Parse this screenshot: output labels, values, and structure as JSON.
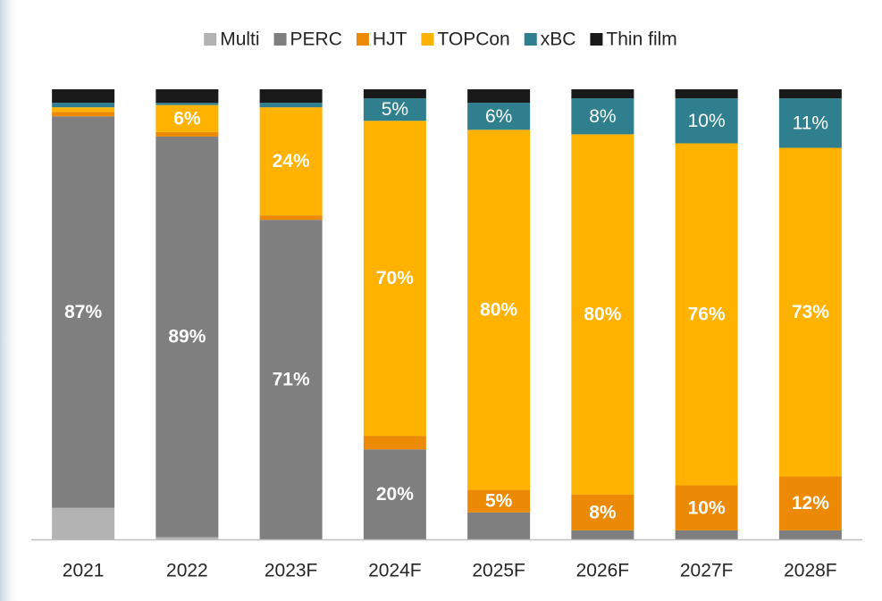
{
  "chart_data": {
    "type": "stacked_bar",
    "categories": [
      "2021",
      "2022",
      "2023F",
      "2024F",
      "2025F",
      "2026F",
      "2027F",
      "2028F"
    ],
    "ylim": [
      0,
      100
    ],
    "legend": "top",
    "series": [
      {
        "name": "Multi",
        "color": "#b3b3b3",
        "values": [
          7,
          0.5,
          0,
          0,
          0,
          0,
          0,
          0
        ],
        "value_labels": [
          null,
          null,
          null,
          null,
          null,
          null,
          null,
          null
        ]
      },
      {
        "name": "PERC",
        "color": "#7f7f7f",
        "values": [
          87,
          89,
          71,
          20,
          6,
          2,
          2,
          2
        ],
        "value_labels": [
          "87%",
          "89%",
          "71%",
          "20%",
          null,
          null,
          null,
          null
        ]
      },
      {
        "name": "HJT",
        "color": "#ec8a06",
        "values": [
          1,
          1,
          1,
          3,
          5,
          8,
          10,
          12
        ],
        "value_labels": [
          null,
          null,
          null,
          null,
          "5%",
          "8%",
          "10%",
          "12%"
        ]
      },
      {
        "name": "TOPCon",
        "color": "#ffb300",
        "values": [
          1,
          6,
          24,
          70,
          80,
          80,
          76,
          73
        ],
        "value_labels": [
          null,
          "6%",
          "24%",
          "70%",
          "80%",
          "80%",
          "76%",
          "73%"
        ]
      },
      {
        "name": "xBC",
        "color": "#2f7f8e",
        "values": [
          1,
          0.5,
          1,
          5,
          6,
          8,
          10,
          11
        ],
        "value_labels": [
          null,
          null,
          null,
          "5%",
          "6%",
          "8%",
          "10%",
          "11%"
        ]
      },
      {
        "name": "Thin film",
        "color": "#1a1a1a",
        "values": [
          3,
          3,
          3,
          2,
          3,
          2,
          2,
          2
        ],
        "value_labels": [
          null,
          null,
          null,
          null,
          null,
          null,
          null,
          null
        ]
      }
    ]
  }
}
